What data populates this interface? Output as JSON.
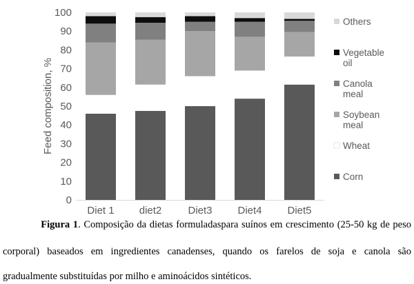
{
  "chart_data": {
    "type": "bar",
    "stacked": true,
    "ylabel": "Feed composition, %",
    "ylim": [
      0,
      100
    ],
    "yticks": [
      "0",
      "10",
      "20",
      "30",
      "40",
      "50",
      "60",
      "70",
      "80",
      "90",
      "100"
    ],
    "categories": [
      "Diet 1",
      "diet2",
      "Diet3",
      "Diet4",
      "Diet5"
    ],
    "series": [
      {
        "name": "Corn",
        "values": [
          46,
          47.5,
          50,
          54,
          61.5
        ],
        "color": "#595959"
      },
      {
        "name": "Wheat",
        "values": [
          10,
          14,
          16,
          15,
          15
        ],
        "color": "#ffffff"
      },
      {
        "name": "Soybean meal",
        "values": [
          28,
          24,
          24,
          18,
          13
        ],
        "color": "#a6a6a6"
      },
      {
        "name": "Canola meal",
        "values": [
          10,
          9,
          5,
          8,
          6
        ],
        "color": "#808080"
      },
      {
        "name": "Vegetable oil",
        "values": [
          4,
          3,
          3,
          2,
          1
        ],
        "color": "#0d0d0d"
      },
      {
        "name": "Others",
        "values": [
          2,
          2.5,
          2,
          3,
          3.5
        ],
        "color": "#d9d9d9"
      }
    ],
    "legend": {
      "position": "right",
      "order": [
        "Others",
        "Vegetable oil",
        "Canola meal",
        "Soybean meal",
        "Wheat",
        "Corn"
      ],
      "labels": {
        "Others": [
          "Others"
        ],
        "Vegetable oil": [
          "Vegetable",
          "oil"
        ],
        "Canola meal": [
          "Canola",
          "meal"
        ],
        "Soybean meal": [
          "Soybean",
          "meal"
        ],
        "Wheat": [
          "Wheat"
        ],
        "Corn": [
          "Corn"
        ]
      }
    },
    "grid": false
  },
  "caption": {
    "label": "Figura 1",
    "line1": ". Composição da dietas formuladaspara suínos em crescimento (25-50 kg de peso",
    "line2": "corporal) baseados em ingredientes canadenses, quando os farelos de soja e canola são",
    "line3": "gradualmente substituídas por milho e aminoácidos sintéticos."
  }
}
